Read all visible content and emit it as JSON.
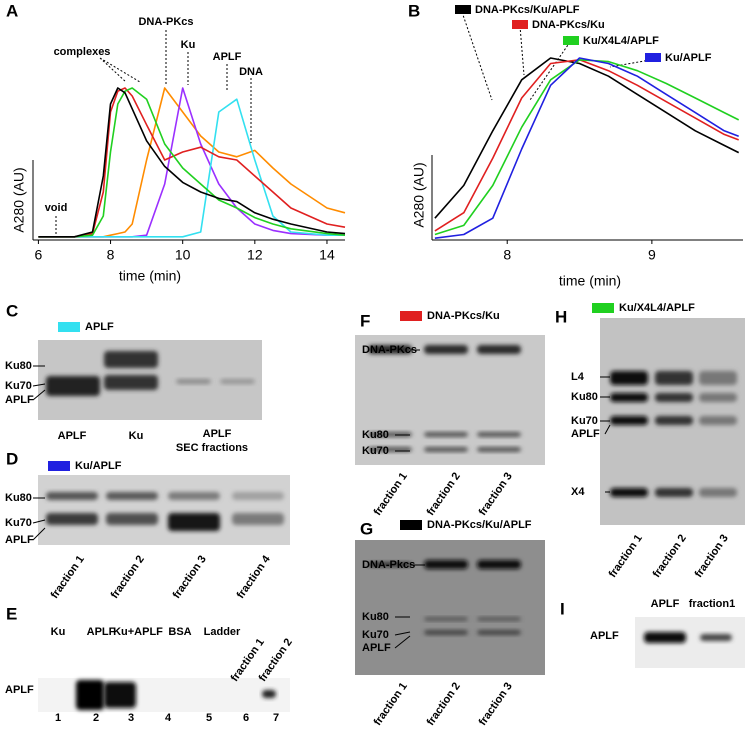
{
  "chart_data": [
    {
      "type": "line",
      "panel_label": "A",
      "xlabel": "time  (min)",
      "ylabel": "A280 (AU)",
      "x": [
        6,
        7,
        7.5,
        7.8,
        8,
        8.2,
        8.4,
        8.6,
        9,
        9.5,
        10,
        10.5,
        11,
        11.5,
        12,
        12.5,
        13,
        14,
        14.5
      ],
      "series": [
        {
          "color": "#ff8c00",
          "values": [
            0.02,
            0.02,
            0.02,
            0.02,
            0.03,
            0.04,
            0.05,
            0.1,
            0.5,
            0.95,
            0.8,
            0.65,
            0.55,
            0.52,
            0.56,
            0.45,
            0.35,
            0.2,
            0.17
          ]
        },
        {
          "color": "#9b30ff",
          "values": [
            0.02,
            0.02,
            0.02,
            0.02,
            0.02,
            0.02,
            0.02,
            0.02,
            0.03,
            0.35,
            0.95,
            0.6,
            0.35,
            0.2,
            0.1,
            0.06,
            0.04,
            0.03,
            0.03
          ]
        },
        {
          "color": "#33e0f0",
          "values": [
            0.02,
            0.02,
            0.02,
            0.02,
            0.02,
            0.02,
            0.02,
            0.02,
            0.02,
            0.02,
            0.02,
            0.05,
            0.8,
            0.88,
            0.5,
            0.15,
            0.05,
            0.03,
            0.03
          ]
        },
        {
          "color": "#e02020",
          "values": [
            0.02,
            0.02,
            0.04,
            0.3,
            0.8,
            0.93,
            0.95,
            0.9,
            0.72,
            0.5,
            0.55,
            0.58,
            0.52,
            0.5,
            0.4,
            0.3,
            0.2,
            0.1,
            0.08
          ]
        },
        {
          "color": "#20d020",
          "values": [
            0.02,
            0.02,
            0.03,
            0.15,
            0.55,
            0.85,
            0.93,
            0.95,
            0.88,
            0.6,
            0.45,
            0.35,
            0.25,
            0.2,
            0.14,
            0.1,
            0.07,
            0.04,
            0.03
          ]
        },
        {
          "color": "#000000",
          "values": [
            0.02,
            0.02,
            0.05,
            0.4,
            0.85,
            0.95,
            0.92,
            0.82,
            0.62,
            0.46,
            0.36,
            0.3,
            0.26,
            0.24,
            0.17,
            0.13,
            0.1,
            0.05,
            0.04
          ]
        }
      ],
      "xlim": [
        5.85,
        14.5
      ],
      "ylim": [
        0,
        1
      ],
      "xticks": [
        6,
        8,
        10,
        12,
        14
      ],
      "annotations": [
        "complexes",
        "DNA-PKcs",
        "Ku",
        "APLF",
        "DNA",
        "void"
      ]
    },
    {
      "type": "line",
      "panel_label": "B",
      "xlabel": "time  (min)",
      "ylabel": "A280 (AU)",
      "x": [
        7.5,
        7.7,
        7.9,
        8.1,
        8.3,
        8.5,
        8.7,
        8.9,
        9.1,
        9.3,
        9.5,
        9.6
      ],
      "series": [
        {
          "name": "DNA-PKcs/Ku/APLF",
          "color": "#000000",
          "values": [
            0.12,
            0.3,
            0.6,
            0.88,
            1.0,
            0.97,
            0.9,
            0.8,
            0.7,
            0.6,
            0.52,
            0.48
          ]
        },
        {
          "name": "DNA-PKcs/Ku",
          "color": "#e02020",
          "values": [
            0.05,
            0.15,
            0.45,
            0.78,
            0.97,
            0.99,
            0.93,
            0.85,
            0.76,
            0.67,
            0.58,
            0.55
          ]
        },
        {
          "name": "Ku/X4L4/APLF",
          "color": "#20d020",
          "values": [
            0.03,
            0.08,
            0.3,
            0.62,
            0.88,
            0.99,
            0.98,
            0.93,
            0.86,
            0.78,
            0.7,
            0.66
          ]
        },
        {
          "name": "Ku/APLF",
          "color": "#2020e0",
          "values": [
            0.01,
            0.03,
            0.12,
            0.5,
            0.85,
            1.0,
            0.97,
            0.9,
            0.8,
            0.7,
            0.6,
            0.57
          ]
        }
      ],
      "xlim": [
        7.48,
        9.63
      ],
      "ylim": [
        0,
        1
      ],
      "xticks": [
        8,
        9
      ]
    }
  ],
  "gels": {
    "C": {
      "panel_label": "C",
      "legend": "APLF",
      "legend_color": "#33e0f0",
      "left_labels": [
        "Ku80",
        "Ku70",
        "APLF"
      ],
      "lane_labels": [
        "APLF",
        "Ku",
        "APLF",
        "SEC fractions"
      ]
    },
    "D": {
      "panel_label": "D",
      "legend": "Ku/APLF",
      "legend_color": "#2020e0",
      "left_labels": [
        "Ku80",
        "Ku70",
        "APLF"
      ],
      "lane_labels": [
        "fraction 1",
        "fraction 2",
        "fraction 3",
        "fraction 4"
      ]
    },
    "E": {
      "panel_label": "E",
      "left_labels": [
        "APLF"
      ],
      "lane_labels": [
        "Ku",
        "APLF",
        "Ku+APLF",
        "BSA",
        "Ladder",
        "fraction 1",
        "fraction 2"
      ],
      "lane_numbers": [
        "1",
        "2",
        "3",
        "4",
        "5",
        "6",
        "7"
      ]
    },
    "F": {
      "panel_label": "F",
      "legend": "DNA-PKcs/Ku",
      "legend_color": "#e02020",
      "left_labels": [
        "DNA-PKcs",
        "Ku80",
        "Ku70"
      ],
      "lane_labels": [
        "fraction 1",
        "fraction 2",
        "fraction 3"
      ]
    },
    "G": {
      "panel_label": "G",
      "legend": "DNA-PKcs/Ku/APLF",
      "legend_color": "#000000",
      "left_labels": [
        "DNA-Pkcs",
        "Ku80",
        "Ku70",
        "APLF"
      ],
      "lane_labels": [
        "fraction 1",
        "fraction 2",
        "fraction 3"
      ]
    },
    "H": {
      "panel_label": "H",
      "legend": "Ku/X4L4/APLF",
      "legend_color": "#20d020",
      "left_labels": [
        "L4",
        "Ku80",
        "Ku70",
        "APLF",
        "X4"
      ],
      "lane_labels": [
        "fraction 1",
        "fraction 2",
        "fraction 3"
      ]
    },
    "I": {
      "panel_label": "I",
      "left_labels": [
        "APLF"
      ],
      "lane_labels": [
        "APLF",
        "fraction1"
      ]
    }
  }
}
